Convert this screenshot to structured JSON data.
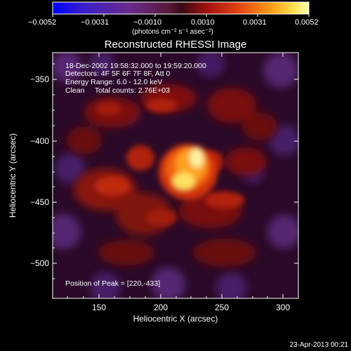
{
  "colorbar": {
    "ticks": [
      "−0.0052",
      "−0.0031",
      "−0.0010",
      "0.0010",
      "0.0031",
      "0.0052"
    ],
    "units": "(photons cm⁻² s⁻¹ asec⁻²)"
  },
  "image": {
    "title": "Reconstructed RHESSI Image",
    "info_lines": [
      "18-Dec-2002 19:58:32.000 to 19:59:20.000",
      "Detectors: 4F 5F 6F 7F 8F, Att 0",
      "Energy Range: 6.0 - 12.0 keV",
      "Clean     Total counts: 2.76E+03"
    ],
    "peak_text": "Position of Peak = [220,-433]",
    "x_label": "Heliocentric X (arcsec)",
    "y_label": "Heliocentric Y (arcsec)",
    "x_ticks": [
      "150",
      "200",
      "250",
      "300"
    ],
    "y_ticks": [
      "−350",
      "−400",
      "−450",
      "−500"
    ],
    "peak": {
      "x": 220,
      "y": -433
    },
    "x_range": [
      115,
      310
    ],
    "y_range": [
      -325,
      -520
    ]
  },
  "footer": {
    "timestamp": "23-Apr-2013 00:21"
  },
  "colors": {
    "background": "#000000",
    "axes": "#ffffff"
  }
}
